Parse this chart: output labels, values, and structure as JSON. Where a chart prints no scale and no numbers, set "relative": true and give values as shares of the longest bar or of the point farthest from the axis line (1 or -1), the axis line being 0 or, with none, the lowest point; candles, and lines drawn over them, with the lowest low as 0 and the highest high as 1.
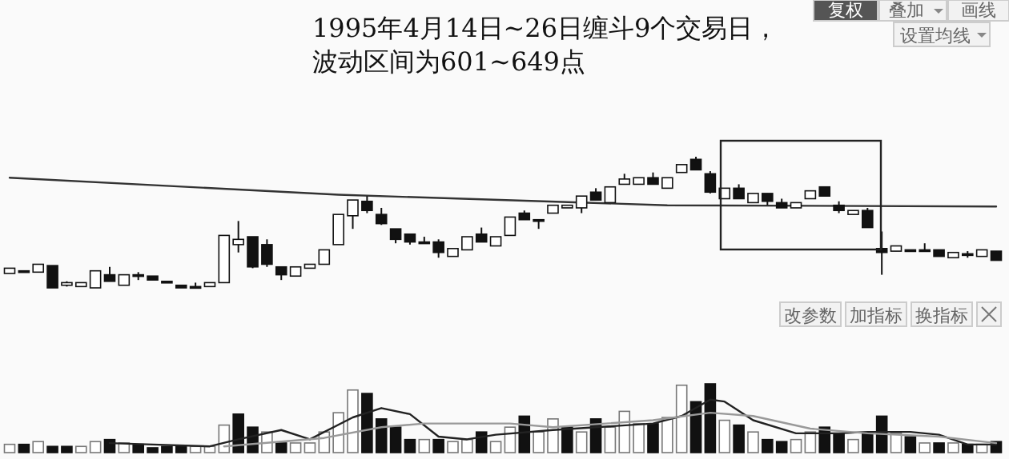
{
  "chart_data": [
    {
      "type": "candlestick",
      "relative": true,
      "title": "1995年4月14日~26日缠斗9个交易日，",
      "subtitle": "波动区间为601~649点",
      "annotations": [
        "复权",
        "叠加",
        "画线",
        "设置均线"
      ],
      "categories": [
        null,
        null,
        null,
        null,
        null,
        null,
        null,
        null,
        null,
        null,
        null,
        null,
        null,
        null,
        null,
        null,
        null,
        null,
        null,
        null,
        null,
        null,
        null,
        null,
        null,
        null,
        null,
        null,
        null,
        null,
        null,
        null,
        null,
        null,
        null,
        null,
        null,
        null,
        null,
        null,
        null,
        null,
        null,
        null,
        null,
        null,
        null,
        null,
        null,
        null,
        null,
        null,
        null,
        null,
        null,
        null,
        null,
        null,
        null,
        null,
        null,
        null,
        null,
        null,
        null,
        null,
        null,
        null,
        null,
        null
      ],
      "ohlc": [
        [
          0.11,
          0.15,
          0.11,
          0.15
        ],
        [
          0.13,
          0.13,
          0.12,
          0.12
        ],
        [
          0.12,
          0.18,
          0.12,
          0.18
        ],
        [
          0.17,
          0.17,
          0,
          0
        ],
        [
          0.02,
          0.05,
          0.01,
          0.04
        ],
        [
          0.01,
          0.04,
          0.01,
          0.04
        ],
        [
          0,
          0.13,
          0,
          0.13
        ],
        [
          0.1,
          0.16,
          0.05,
          0.05
        ],
        [
          0.02,
          0.1,
          0.02,
          0.1
        ],
        [
          0.1,
          0.12,
          0.06,
          0.1
        ],
        [
          0.09,
          0.09,
          0.06,
          0.06
        ],
        [
          0.05,
          0.05,
          0.04,
          0.04
        ],
        [
          0.02,
          0.02,
          0,
          0
        ],
        [
          0.01,
          0.04,
          0.01,
          0.01
        ],
        [
          0.01,
          0.04,
          0.01,
          0.04
        ],
        [
          0.04,
          0.4,
          0.04,
          0.4
        ],
        [
          0.33,
          0.51,
          0.27,
          0.37
        ],
        [
          0.39,
          0.39,
          0.15,
          0.16
        ],
        [
          0.33,
          0.37,
          0.16,
          0.18
        ],
        [
          0.16,
          0.16,
          0.06,
          0.1
        ],
        [
          0.09,
          0.16,
          0.09,
          0.16
        ],
        [
          0.15,
          0.18,
          0.15,
          0.18
        ],
        [
          0.18,
          0.29,
          0.18,
          0.29
        ],
        [
          0.33,
          0.56,
          0.33,
          0.56
        ],
        [
          0.55,
          0.67,
          0.45,
          0.67
        ],
        [
          0.66,
          0.7,
          0.57,
          0.59
        ],
        [
          0.56,
          0.61,
          0.48,
          0.49
        ],
        [
          0.45,
          0.45,
          0.34,
          0.37
        ],
        [
          0.41,
          0.41,
          0.33,
          0.35
        ],
        [
          0.35,
          0.39,
          0.35,
          0.35
        ],
        [
          0.35,
          0.37,
          0.23,
          0.27
        ],
        [
          0.24,
          0.3,
          0.24,
          0.3
        ],
        [
          0.29,
          0.39,
          0.29,
          0.39
        ],
        [
          0.41,
          0.46,
          0.35,
          0.35
        ],
        [
          0.32,
          0.39,
          0.32,
          0.39
        ],
        [
          0.4,
          0.54,
          0.4,
          0.54
        ],
        [
          0.57,
          0.59,
          0.52,
          0.52
        ],
        [
          0.52,
          0.52,
          0.45,
          0.52
        ],
        [
          0.57,
          0.63,
          0.57,
          0.63
        ],
        [
          0.61,
          0.63,
          0.61,
          0.63
        ],
        [
          0.61,
          0.7,
          0.57,
          0.7
        ],
        [
          0.73,
          0.76,
          0.67,
          0.67
        ],
        [
          0.65,
          0.77,
          0.65,
          0.77
        ],
        [
          0.79,
          0.87,
          0.79,
          0.83
        ],
        [
          0.79,
          0.84,
          0.79,
          0.84
        ],
        [
          0.84,
          0.88,
          0.79,
          0.79
        ],
        [
          0.76,
          0.84,
          0.76,
          0.84
        ],
        [
          0.88,
          0.94,
          0.88,
          0.94
        ],
        [
          0.98,
          1,
          0.9,
          0.9
        ],
        [
          0.87,
          0.89,
          0.72,
          0.73
        ],
        [
          0.68,
          0.76,
          0.68,
          0.76
        ],
        [
          0.76,
          0.79,
          0.68,
          0.68
        ],
        [
          0.65,
          0.72,
          0.65,
          0.72
        ],
        [
          0.72,
          0.72,
          0.63,
          0.66
        ],
        [
          0.65,
          0.68,
          0.61,
          0.61
        ],
        [
          0.61,
          0.65,
          0.61,
          0.65
        ],
        [
          0.68,
          0.74,
          0.68,
          0.74
        ],
        [
          0.77,
          0.77,
          0.7,
          0.7
        ],
        [
          0.63,
          0.66,
          0.57,
          0.59
        ],
        [
          0.56,
          0.59,
          0.56,
          0.59
        ],
        [
          0.59,
          0.61,
          0.46,
          0.46
        ],
        [
          0.3,
          0.43,
          0.1,
          0.27
        ],
        [
          0.28,
          0.32,
          0.28,
          0.32
        ],
        [
          0.29,
          0.29,
          0.28,
          0.28
        ],
        [
          0.29,
          0.34,
          0.29,
          0.29
        ],
        [
          0.29,
          0.29,
          0.24,
          0.24
        ],
        [
          0.23,
          0.27,
          0.23,
          0.27
        ],
        [
          0.26,
          0.28,
          0.23,
          0.26
        ],
        [
          0.24,
          0.29,
          0.24,
          0.29
        ],
        [
          0.28,
          0.28,
          0.21,
          0.21
        ]
      ],
      "series": [
        {
          "type": "line",
          "color": "#333333",
          "values": [
            0.84,
            null,
            null,
            null,
            null,
            null,
            null,
            null,
            null,
            null,
            null,
            null,
            null,
            null,
            null,
            null,
            null,
            null,
            null,
            null,
            null,
            null,
            null,
            0.71,
            null,
            null,
            null,
            null,
            null,
            null,
            null,
            null,
            null,
            null,
            null,
            null,
            null,
            null,
            null,
            null,
            null,
            null,
            null,
            null,
            null,
            null,
            0.63,
            null,
            null,
            null,
            null,
            null,
            null,
            null,
            null,
            null,
            null,
            null,
            null,
            null,
            null,
            null,
            null,
            null,
            null,
            null,
            null,
            null,
            null,
            0.62
          ]
        }
      ]
    },
    {
      "type": "bar",
      "relative": true,
      "annotations": [
        "改参数",
        "加指标",
        "换指标"
      ],
      "categories": [
        null,
        null,
        null,
        null,
        null,
        null,
        null,
        null,
        null,
        null,
        null,
        null,
        null,
        null,
        null,
        null,
        null,
        null,
        null,
        null,
        null,
        null,
        null,
        null,
        null,
        null,
        null,
        null,
        null,
        null,
        null,
        null,
        null,
        null,
        null,
        null,
        null,
        null,
        null,
        null,
        null,
        null,
        null,
        null,
        null,
        null,
        null,
        null,
        null,
        null,
        null,
        null,
        null,
        null,
        null,
        null,
        null,
        null,
        null,
        null,
        null,
        null,
        null,
        null,
        null,
        null,
        null,
        null,
        null,
        null
      ],
      "series": [
        {
          "type": "bar",
          "values": [
            0.12,
            0.12,
            0.16,
            0.09,
            0.09,
            0.09,
            0.16,
            0.19,
            0.14,
            0.12,
            0.07,
            0.09,
            0.09,
            0.09,
            0.09,
            0.4,
            0.56,
            0.37,
            0.3,
            0.14,
            0.14,
            0.14,
            0.3,
            0.58,
            0.91,
            0.86,
            0.49,
            0.37,
            0.19,
            0.19,
            0.19,
            0.16,
            0.19,
            0.3,
            0.16,
            0.37,
            0.53,
            0.3,
            0.49,
            0.37,
            0.3,
            0.49,
            0.37,
            0.6,
            0.42,
            0.42,
            0.51,
            0.98,
            0.74,
            1,
            0.47,
            0.4,
            0.3,
            0.19,
            0.16,
            0.19,
            0.3,
            0.37,
            0.28,
            0.19,
            0.28,
            0.53,
            0.28,
            0.23,
            0.14,
            0.14,
            0.14,
            0.12,
            0.12,
            0.16
          ],
          "colors": [
            "#ffffff",
            "#111111",
            "#ffffff",
            "#111111",
            "#111111",
            "#ffffff",
            "#ffffff",
            "#111111",
            "#ffffff",
            "#111111",
            "#111111",
            "#111111",
            "#111111",
            "#ffffff",
            "#ffffff",
            "#ffffff",
            "#111111",
            "#111111",
            "#ffffff",
            "#111111",
            "#ffffff",
            "#ffffff",
            "#ffffff",
            "#ffffff",
            "#ffffff",
            "#111111",
            "#111111",
            "#111111",
            "#111111",
            "#ffffff",
            "#111111",
            "#ffffff",
            "#ffffff",
            "#111111",
            "#ffffff",
            "#ffffff",
            "#111111",
            "#ffffff",
            "#ffffff",
            "#111111",
            "#ffffff",
            "#111111",
            "#ffffff",
            "#ffffff",
            "#ffffff",
            "#111111",
            "#ffffff",
            "#ffffff",
            "#111111",
            "#111111",
            "#ffffff",
            "#111111",
            "#ffffff",
            "#111111",
            "#111111",
            "#ffffff",
            "#ffffff",
            "#111111",
            "#111111",
            "#ffffff",
            "#111111",
            "#111111",
            "#ffffff",
            "#111111",
            "#ffffff",
            "#111111",
            "#ffffff",
            "#111111",
            "#ffffff",
            "#111111"
          ]
        }
      ]
    },
    {
      "type": "line",
      "relative": true,
      "categories": [
        null,
        null,
        null,
        null,
        null,
        null,
        null,
        null,
        null,
        null,
        null,
        null,
        null,
        null,
        null,
        null,
        null,
        null,
        null,
        null,
        null,
        null,
        null,
        null,
        null,
        null,
        null,
        null,
        null,
        null,
        null,
        null,
        null,
        null,
        null,
        null,
        null,
        null,
        null,
        null,
        null,
        null,
        null,
        null,
        null,
        null,
        null,
        null,
        null,
        null,
        null,
        null,
        null,
        null,
        null,
        null,
        null,
        null,
        null,
        null,
        null,
        null,
        null,
        null,
        null,
        null,
        null,
        null,
        null,
        null
      ],
      "series": [
        {
          "type": "line",
          "color": "#222222",
          "values": [
            null,
            null,
            null,
            null,
            null,
            null,
            null,
            0.07,
            null,
            null,
            0.04,
            null,
            null,
            null,
            0,
            null,
            0.15,
            null,
            null,
            0.35,
            null,
            0.15,
            null,
            null,
            0.62,
            null,
            0.82,
            null,
            0.69,
            null,
            0.21,
            null,
            0.15,
            null,
            0.25,
            null,
            null,
            null,
            0.35,
            null,
            null,
            0.41,
            null,
            null,
            null,
            0.49,
            null,
            0.65,
            null,
            1,
            0.96,
            null,
            0.56,
            null,
            null,
            0.28,
            null,
            null,
            0.28,
            null,
            0.31,
            null,
            null,
            0.31,
            null,
            0.25,
            null,
            0.04,
            null,
            0.04
          ]
        },
        {
          "type": "line",
          "color": "#999999",
          "values": [
            null,
            null,
            null,
            null,
            null,
            null,
            null,
            null,
            null,
            null,
            null,
            null,
            null,
            null,
            null,
            0,
            null,
            null,
            null,
            null,
            null,
            null,
            0.18,
            null,
            null,
            null,
            0.41,
            null,
            null,
            0.49,
            null,
            null,
            null,
            null,
            null,
            0.49,
            null,
            null,
            0.41,
            null,
            null,
            null,
            null,
            null,
            null,
            0.56,
            null,
            null,
            null,
            0.72,
            null,
            null,
            0.65,
            null,
            null,
            null,
            0.38,
            null,
            null,
            null,
            0.28,
            null,
            null,
            null,
            null,
            0.21,
            null,
            null,
            null,
            0.07
          ]
        }
      ]
    }
  ]
}
